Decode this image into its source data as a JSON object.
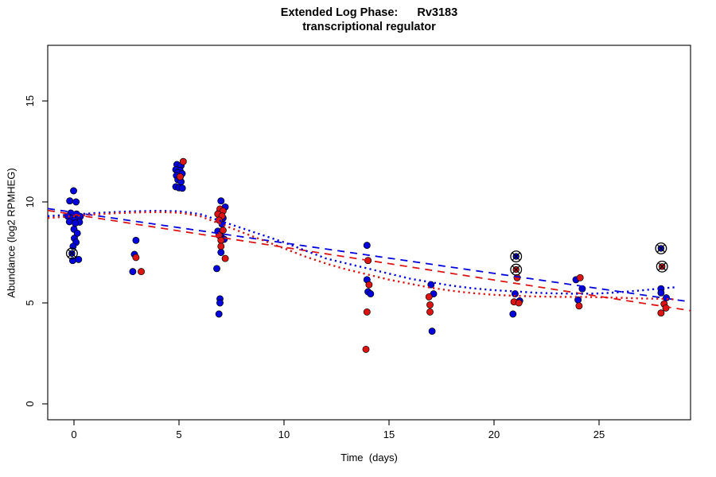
{
  "title": {
    "line1": "Extended Log Phase:      Rv3183",
    "line2": "transcriptional regulator"
  },
  "axes": {
    "xlabel": "Time  (days)",
    "ylabel": "Abundance  (log2 RPMHEG)"
  },
  "chart_data": {
    "type": "scatter",
    "title": "Extended Log Phase: Rv3183 transcriptional regulator",
    "xlabel": "Time (days)",
    "ylabel": "Abundance (log2 RPMHEG)",
    "xlim": [
      -1.25,
      29.35
    ],
    "ylim": [
      -0.79,
      17.76
    ],
    "x_ticks": [
      0,
      5,
      10,
      15,
      20,
      25
    ],
    "y_ticks": [
      0,
      5,
      10,
      15
    ],
    "grid": false,
    "legend": "none",
    "colors": {
      "blue": "#0000DC",
      "red": "#DC1414"
    },
    "series": [
      {
        "name": "blue-samples",
        "role": "points",
        "marker": "dot",
        "color_key": "blue",
        "points": [
          [
            -0.02,
            10.55
          ],
          [
            -0.2,
            10.05
          ],
          [
            0.1,
            10.0
          ],
          [
            -0.15,
            9.45
          ],
          [
            0.12,
            9.4
          ],
          [
            -0.3,
            9.3
          ],
          [
            0.3,
            9.28
          ],
          [
            -0.08,
            9.2
          ],
          [
            0.18,
            9.15
          ],
          [
            0.02,
            9.1
          ],
          [
            -0.22,
            9.02
          ],
          [
            0.26,
            9.0
          ],
          [
            0.06,
            8.95
          ],
          [
            0.0,
            8.65
          ],
          [
            0.16,
            8.45
          ],
          [
            0.02,
            8.2
          ],
          [
            0.1,
            8.0
          ],
          [
            -0.04,
            7.8
          ],
          [
            -0.06,
            7.1
          ],
          [
            0.22,
            7.15
          ],
          [
            2.95,
            8.1
          ],
          [
            2.88,
            7.4
          ],
          [
            2.8,
            6.55
          ],
          [
            4.9,
            11.85
          ],
          [
            5.1,
            11.8
          ],
          [
            4.85,
            11.6
          ],
          [
            5.05,
            11.55
          ],
          [
            4.95,
            11.45
          ],
          [
            5.15,
            11.4
          ],
          [
            4.88,
            11.3
          ],
          [
            5.06,
            11.25
          ],
          [
            4.95,
            11.1
          ],
          [
            5.1,
            11.0
          ],
          [
            4.85,
            10.75
          ],
          [
            5.0,
            10.7
          ],
          [
            5.16,
            10.68
          ],
          [
            7.0,
            10.05
          ],
          [
            7.2,
            9.75
          ],
          [
            6.9,
            9.45
          ],
          [
            7.1,
            9.2
          ],
          [
            7.05,
            8.9
          ],
          [
            6.85,
            8.55
          ],
          [
            7.0,
            8.3
          ],
          [
            7.15,
            8.15
          ],
          [
            7.0,
            7.5
          ],
          [
            6.8,
            6.7
          ],
          [
            6.95,
            5.2
          ],
          [
            6.95,
            5.0
          ],
          [
            6.9,
            4.45
          ],
          [
            13.95,
            7.85
          ],
          [
            13.95,
            6.15
          ],
          [
            14.0,
            5.55
          ],
          [
            14.12,
            5.45
          ],
          [
            17.0,
            5.9
          ],
          [
            17.12,
            5.45
          ],
          [
            17.05,
            3.6
          ],
          [
            21.0,
            5.45
          ],
          [
            21.22,
            5.1
          ],
          [
            20.9,
            4.45
          ],
          [
            23.9,
            6.15
          ],
          [
            24.2,
            5.7
          ],
          [
            24.0,
            5.15
          ],
          [
            27.95,
            5.7
          ],
          [
            27.95,
            5.5
          ],
          [
            28.2,
            5.25
          ]
        ]
      },
      {
        "name": "red-samples",
        "role": "points",
        "marker": "dot",
        "color_key": "red",
        "points": [
          [
            2.95,
            7.25
          ],
          [
            3.2,
            6.55
          ],
          [
            5.2,
            12.0
          ],
          [
            5.05,
            11.25
          ],
          [
            6.95,
            9.65
          ],
          [
            7.1,
            9.55
          ],
          [
            6.85,
            9.4
          ],
          [
            7.05,
            9.3
          ],
          [
            6.9,
            9.1
          ],
          [
            7.1,
            8.6
          ],
          [
            6.9,
            8.35
          ],
          [
            7.0,
            8.1
          ],
          [
            7.0,
            7.8
          ],
          [
            7.2,
            7.2
          ],
          [
            14.0,
            7.1
          ],
          [
            14.05,
            5.9
          ],
          [
            13.95,
            4.55
          ],
          [
            13.9,
            2.7
          ],
          [
            16.9,
            5.3
          ],
          [
            16.95,
            4.9
          ],
          [
            16.95,
            4.55
          ],
          [
            21.1,
            6.25
          ],
          [
            20.95,
            5.05
          ],
          [
            21.18,
            5.0
          ],
          [
            24.1,
            6.25
          ],
          [
            24.05,
            4.85
          ],
          [
            28.1,
            4.95
          ],
          [
            28.18,
            4.75
          ],
          [
            27.95,
            4.5
          ]
        ]
      },
      {
        "name": "blue-flagged-samples",
        "role": "points",
        "marker": "circle-cross",
        "color_key": "blue",
        "points": [
          [
            -0.1,
            7.45
          ],
          [
            21.05,
            7.3
          ],
          [
            27.95,
            7.7
          ]
        ]
      },
      {
        "name": "red-flagged-samples",
        "role": "points",
        "marker": "circle-cross",
        "color_key": "red",
        "points": [
          [
            21.05,
            6.65
          ],
          [
            28.0,
            6.8
          ]
        ]
      },
      {
        "name": "blue-linear-fit",
        "role": "line",
        "dash": "dashed",
        "color_key": "blue",
        "points": [
          [
            -1.25,
            9.67
          ],
          [
            29.35,
            5.05
          ]
        ]
      },
      {
        "name": "red-linear-fit",
        "role": "line",
        "dash": "dashed",
        "color_key": "red",
        "points": [
          [
            -1.25,
            9.58
          ],
          [
            29.35,
            4.62
          ]
        ]
      },
      {
        "name": "blue-loess-fit",
        "role": "line",
        "dash": "dotted",
        "color_key": "blue",
        "points": [
          [
            -1.25,
            9.3
          ],
          [
            0,
            9.38
          ],
          [
            1,
            9.45
          ],
          [
            2,
            9.5
          ],
          [
            3,
            9.54
          ],
          [
            4,
            9.56
          ],
          [
            5,
            9.54
          ],
          [
            6,
            9.4
          ],
          [
            7,
            9.05
          ],
          [
            8,
            8.7
          ],
          [
            9,
            8.35
          ],
          [
            10,
            8.0
          ],
          [
            11,
            7.6
          ],
          [
            12,
            7.2
          ],
          [
            13,
            6.95
          ],
          [
            14,
            6.7
          ],
          [
            15,
            6.45
          ],
          [
            16,
            6.2
          ],
          [
            17,
            6.02
          ],
          [
            18,
            5.85
          ],
          [
            19,
            5.72
          ],
          [
            20,
            5.63
          ],
          [
            21,
            5.57
          ],
          [
            22,
            5.5
          ],
          [
            23,
            5.47
          ],
          [
            24,
            5.45
          ],
          [
            25,
            5.47
          ],
          [
            26,
            5.53
          ],
          [
            27,
            5.62
          ],
          [
            28,
            5.72
          ],
          [
            28.7,
            5.78
          ]
        ]
      },
      {
        "name": "red-loess-fit",
        "role": "line",
        "dash": "dotted",
        "color_key": "red",
        "points": [
          [
            -1.25,
            9.2
          ],
          [
            0,
            9.3
          ],
          [
            1,
            9.38
          ],
          [
            2,
            9.44
          ],
          [
            3,
            9.48
          ],
          [
            4,
            9.5
          ],
          [
            5,
            9.47
          ],
          [
            6,
            9.3
          ],
          [
            7,
            8.9
          ],
          [
            8,
            8.5
          ],
          [
            9,
            8.1
          ],
          [
            10,
            7.7
          ],
          [
            11,
            7.3
          ],
          [
            12,
            6.95
          ],
          [
            13,
            6.65
          ],
          [
            14,
            6.4
          ],
          [
            15,
            6.15
          ],
          [
            16,
            5.95
          ],
          [
            17,
            5.75
          ],
          [
            18,
            5.6
          ],
          [
            19,
            5.48
          ],
          [
            20,
            5.4
          ],
          [
            21,
            5.35
          ],
          [
            22,
            5.32
          ],
          [
            23,
            5.3
          ],
          [
            24,
            5.3
          ],
          [
            25,
            5.28
          ],
          [
            26,
            5.25
          ],
          [
            27,
            5.22
          ],
          [
            28,
            5.2
          ],
          [
            28.7,
            5.17
          ]
        ]
      }
    ]
  }
}
